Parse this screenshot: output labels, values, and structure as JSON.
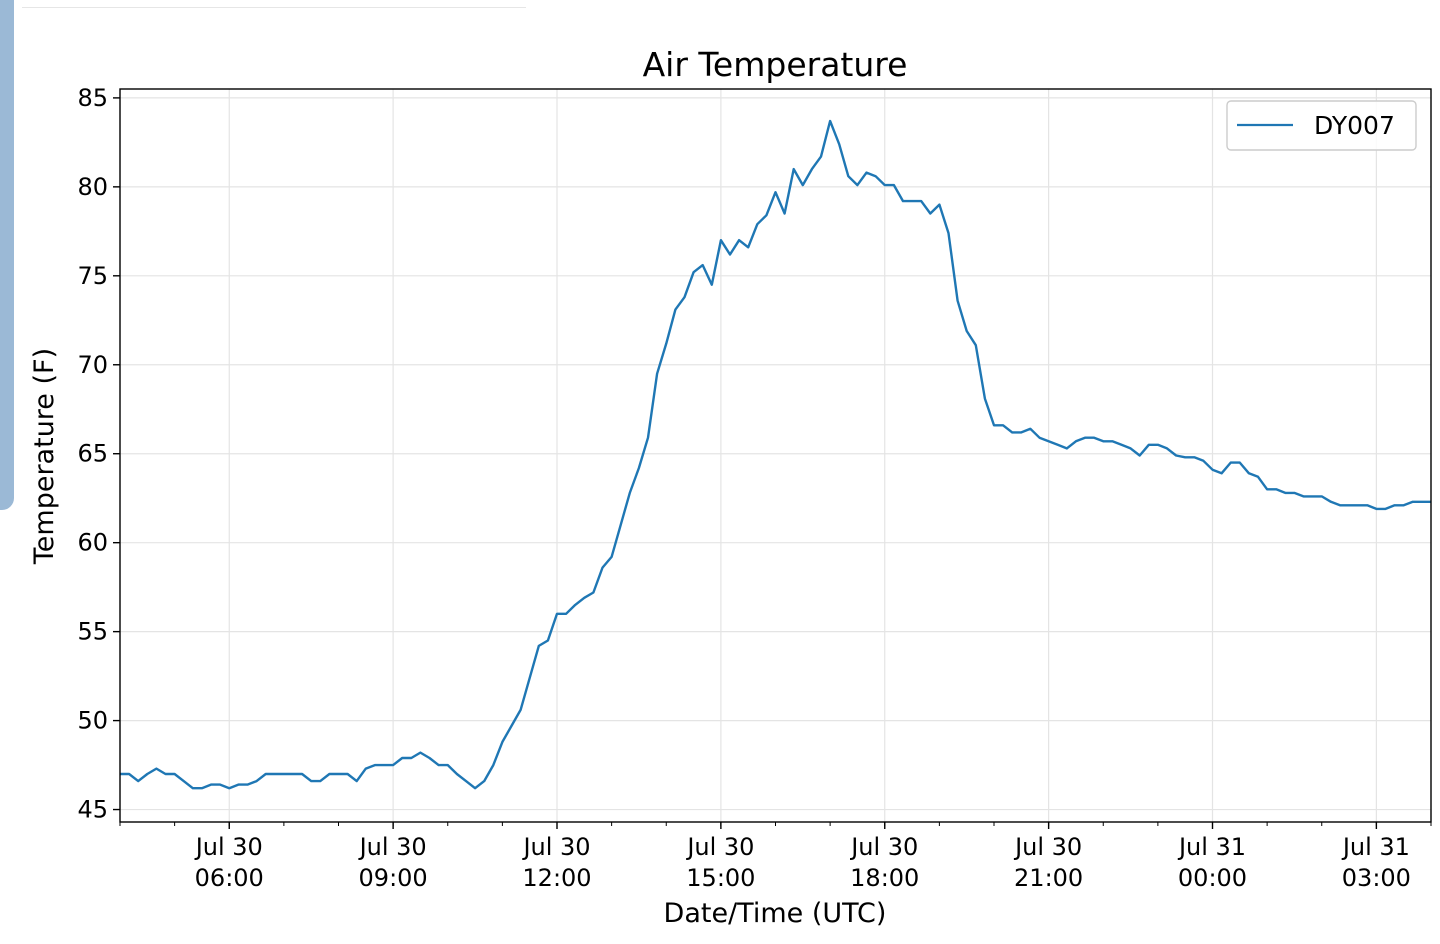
{
  "chart_data": {
    "type": "line",
    "title": "Air Temperature",
    "xlabel": "Date/Time (UTC)",
    "ylabel": "Temperature (F)",
    "x_range": [
      "2019-07-30 04:00",
      "2019-07-31 04:00"
    ],
    "ylim": [
      44.3,
      85.5
    ],
    "y_ticks": [
      45,
      50,
      55,
      60,
      65,
      70,
      75,
      80,
      85
    ],
    "x_ticks": [
      {
        "time": "2019-07-30 06:00",
        "label_line1": "Jul 30",
        "label_line2": "06:00"
      },
      {
        "time": "2019-07-30 09:00",
        "label_line1": "Jul 30",
        "label_line2": "09:00"
      },
      {
        "time": "2019-07-30 12:00",
        "label_line1": "Jul 30",
        "label_line2": "12:00"
      },
      {
        "time": "2019-07-30 15:00",
        "label_line1": "Jul 30",
        "label_line2": "15:00"
      },
      {
        "time": "2019-07-30 18:00",
        "label_line1": "Jul 30",
        "label_line2": "18:00"
      },
      {
        "time": "2019-07-30 21:00",
        "label_line1": "Jul 30",
        "label_line2": "21:00"
      },
      {
        "time": "2019-07-31 00:00",
        "label_line1": "Jul 31",
        "label_line2": "00:00"
      },
      {
        "time": "2019-07-31 03:00",
        "label_line1": "Jul 31",
        "label_line2": "03:00"
      }
    ],
    "grid": true,
    "legend_position": "top-right",
    "series": [
      {
        "name": "DY007",
        "color": "#1f77b4",
        "x": [
          "2019-07-30 04:00",
          "2019-07-30 04:10",
          "2019-07-30 04:20",
          "2019-07-30 04:30",
          "2019-07-30 04:40",
          "2019-07-30 04:50",
          "2019-07-30 05:00",
          "2019-07-30 05:10",
          "2019-07-30 05:20",
          "2019-07-30 05:30",
          "2019-07-30 05:40",
          "2019-07-30 05:50",
          "2019-07-30 06:00",
          "2019-07-30 06:10",
          "2019-07-30 06:20",
          "2019-07-30 06:30",
          "2019-07-30 06:40",
          "2019-07-30 06:50",
          "2019-07-30 07:00",
          "2019-07-30 07:10",
          "2019-07-30 07:20",
          "2019-07-30 07:30",
          "2019-07-30 07:40",
          "2019-07-30 07:50",
          "2019-07-30 08:00",
          "2019-07-30 08:10",
          "2019-07-30 08:20",
          "2019-07-30 08:30",
          "2019-07-30 08:40",
          "2019-07-30 08:50",
          "2019-07-30 09:00",
          "2019-07-30 09:10",
          "2019-07-30 09:20",
          "2019-07-30 09:30",
          "2019-07-30 09:40",
          "2019-07-30 09:50",
          "2019-07-30 10:00",
          "2019-07-30 10:10",
          "2019-07-30 10:20",
          "2019-07-30 10:30",
          "2019-07-30 10:40",
          "2019-07-30 10:50",
          "2019-07-30 11:00",
          "2019-07-30 11:10",
          "2019-07-30 11:20",
          "2019-07-30 11:30",
          "2019-07-30 11:40",
          "2019-07-30 11:50",
          "2019-07-30 12:00",
          "2019-07-30 12:10",
          "2019-07-30 12:20",
          "2019-07-30 12:30",
          "2019-07-30 12:40",
          "2019-07-30 12:50",
          "2019-07-30 13:00",
          "2019-07-30 13:10",
          "2019-07-30 13:20",
          "2019-07-30 13:30",
          "2019-07-30 13:40",
          "2019-07-30 13:50",
          "2019-07-30 14:00",
          "2019-07-30 14:10",
          "2019-07-30 14:20",
          "2019-07-30 14:30",
          "2019-07-30 14:40",
          "2019-07-30 14:50",
          "2019-07-30 15:00",
          "2019-07-30 15:10",
          "2019-07-30 15:20",
          "2019-07-30 15:30",
          "2019-07-30 15:40",
          "2019-07-30 15:50",
          "2019-07-30 16:00",
          "2019-07-30 16:10",
          "2019-07-30 16:20",
          "2019-07-30 16:30",
          "2019-07-30 16:40",
          "2019-07-30 16:50",
          "2019-07-30 17:00",
          "2019-07-30 17:10",
          "2019-07-30 17:20",
          "2019-07-30 17:30",
          "2019-07-30 17:40",
          "2019-07-30 17:50",
          "2019-07-30 18:00",
          "2019-07-30 18:10",
          "2019-07-30 18:20",
          "2019-07-30 18:30",
          "2019-07-30 18:40",
          "2019-07-30 18:50",
          "2019-07-30 19:00",
          "2019-07-30 19:10",
          "2019-07-30 19:20",
          "2019-07-30 19:30",
          "2019-07-30 19:40",
          "2019-07-30 19:50",
          "2019-07-30 20:00",
          "2019-07-30 20:10",
          "2019-07-30 20:20",
          "2019-07-30 20:30",
          "2019-07-30 20:40",
          "2019-07-30 20:50",
          "2019-07-30 21:00",
          "2019-07-30 21:10",
          "2019-07-30 21:20",
          "2019-07-30 21:30",
          "2019-07-30 21:40",
          "2019-07-30 21:50",
          "2019-07-30 22:00",
          "2019-07-30 22:10",
          "2019-07-30 22:20",
          "2019-07-30 22:30",
          "2019-07-30 22:40",
          "2019-07-30 22:50",
          "2019-07-30 23:00",
          "2019-07-30 23:10",
          "2019-07-30 23:20",
          "2019-07-30 23:30",
          "2019-07-30 23:40",
          "2019-07-30 23:50",
          "2019-07-31 00:00",
          "2019-07-31 00:10",
          "2019-07-31 00:20",
          "2019-07-31 00:30",
          "2019-07-31 00:40",
          "2019-07-31 00:50",
          "2019-07-31 01:00",
          "2019-07-31 01:10",
          "2019-07-31 01:20",
          "2019-07-31 01:30",
          "2019-07-31 01:40",
          "2019-07-31 01:50",
          "2019-07-31 02:00",
          "2019-07-31 02:10",
          "2019-07-31 02:20",
          "2019-07-31 02:30",
          "2019-07-31 02:40",
          "2019-07-31 02:50",
          "2019-07-31 03:00",
          "2019-07-31 03:10",
          "2019-07-31 03:20",
          "2019-07-31 03:30",
          "2019-07-31 03:40",
          "2019-07-31 03:50",
          "2019-07-31 04:00"
        ],
        "y": [
          47.0,
          47.0,
          46.6,
          47.0,
          47.3,
          47.0,
          47.0,
          46.6,
          46.2,
          46.2,
          46.4,
          46.4,
          46.2,
          46.4,
          46.4,
          46.6,
          47.0,
          47.0,
          47.0,
          47.0,
          47.0,
          46.6,
          46.6,
          47.0,
          47.0,
          47.0,
          46.6,
          47.3,
          47.5,
          47.5,
          47.5,
          47.9,
          47.9,
          48.2,
          47.9,
          47.5,
          47.5,
          47.0,
          46.6,
          46.2,
          46.6,
          47.5,
          48.8,
          49.7,
          50.6,
          52.4,
          54.2,
          54.5,
          56.0,
          56.0,
          56.5,
          56.9,
          57.2,
          58.6,
          59.2,
          61.0,
          62.8,
          64.2,
          65.9,
          69.5,
          71.2,
          73.1,
          73.8,
          75.2,
          75.6,
          74.5,
          77.0,
          76.2,
          77.0,
          76.6,
          77.9,
          78.4,
          79.7,
          78.5,
          81.0,
          80.1,
          81.0,
          81.7,
          83.7,
          82.4,
          80.6,
          80.1,
          80.8,
          80.6,
          80.1,
          80.1,
          79.2,
          79.2,
          79.2,
          78.5,
          79.0,
          77.4,
          73.6,
          71.9,
          71.1,
          68.1,
          66.6,
          66.6,
          66.2,
          66.2,
          66.4,
          65.9,
          65.7,
          65.5,
          65.3,
          65.7,
          65.9,
          65.9,
          65.7,
          65.7,
          65.5,
          65.3,
          64.9,
          65.5,
          65.5,
          65.3,
          64.9,
          64.8,
          64.8,
          64.6,
          64.1,
          63.9,
          64.5,
          64.5,
          63.9,
          63.7,
          63.0,
          63.0,
          62.8,
          62.8,
          62.6,
          62.6,
          62.6,
          62.3,
          62.1,
          62.1,
          62.1,
          62.1,
          61.9,
          61.9,
          62.1,
          62.1,
          62.3,
          62.3,
          62.3
        ]
      }
    ]
  }
}
